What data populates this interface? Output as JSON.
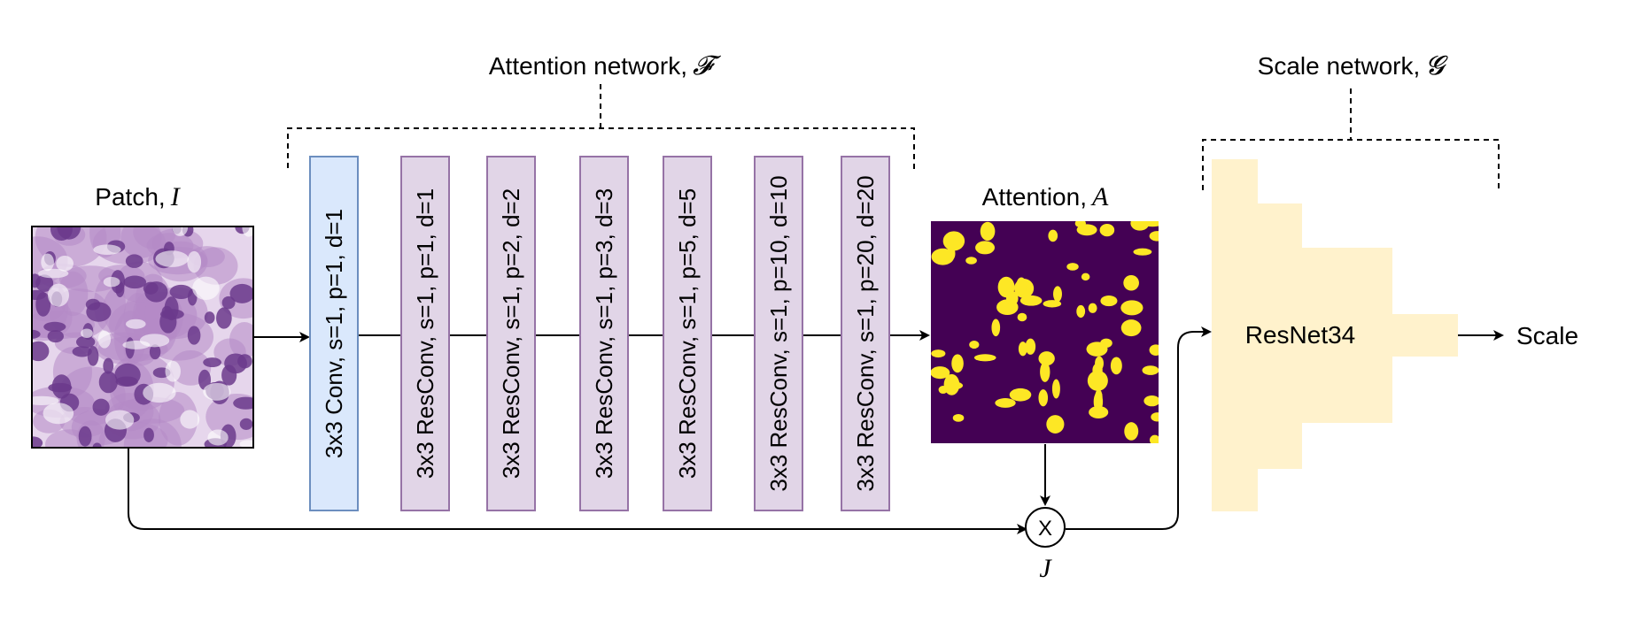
{
  "attention_network": {
    "label": "Attention network,",
    "symbol": "𝓕"
  },
  "scale_network": {
    "label": "Scale network,",
    "symbol": "𝓖"
  },
  "patch": {
    "label": "Patch,",
    "symbol": "I",
    "image": "histology-patch"
  },
  "attention": {
    "label": "Attention,",
    "symbol": "A",
    "image": "attention-map"
  },
  "blocks": [
    {
      "text": "3x3 Conv, s=1, p=1, d=1",
      "kind": "conv"
    },
    {
      "text": "3x3 ResConv, s=1, p=1, d=1",
      "kind": "resconv"
    },
    {
      "text": "3x3 ResConv, s=1, p=2, d=2",
      "kind": "resconv"
    },
    {
      "text": "3x3 ResConv, s=1, p=3, d=3",
      "kind": "resconv"
    },
    {
      "text": "3x3 ResConv, s=1, p=5, d=5",
      "kind": "resconv"
    },
    {
      "text": "3x3 ResConv, s=1, p=10, d=10",
      "kind": "resconv"
    },
    {
      "text": "3x3 ResConv, s=1, p=20, d=20",
      "kind": "resconv"
    }
  ],
  "multiply": {
    "op": "X",
    "symbol": "J"
  },
  "resnet": {
    "label": "ResNet34"
  },
  "output": {
    "label": "Scale"
  },
  "colors": {
    "conv_fill": "#dae8fc",
    "conv_stroke": "#6c8ebf",
    "resconv_fill": "#e1d5e7",
    "resconv_stroke": "#9673a6",
    "resnet_fill": "#fff2cc",
    "attention_bg": "#440154",
    "attention_fg": "#fde725",
    "patch_bg": "#e6d6ec",
    "patch_cell": "#6b3a8c"
  }
}
